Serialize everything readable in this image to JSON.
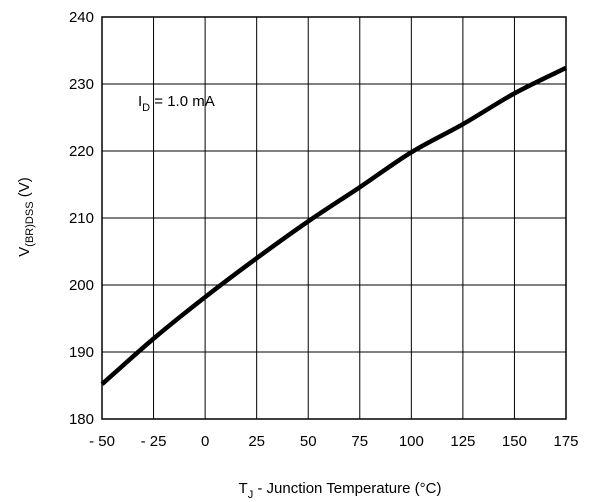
{
  "chart_data": {
    "type": "line",
    "xlabel": {
      "symbol": "T",
      "sub": "J",
      "text": " -  Junction Temperature (°C)"
    },
    "ylabel": {
      "prefix": "V",
      "sub": "(BR)DSS",
      "suffix": " (V)"
    },
    "annotation": {
      "prefix": "I",
      "sub": "D",
      "suffix": " = 1.0 mA"
    },
    "xlim": [
      -50,
      175
    ],
    "ylim": [
      180,
      240
    ],
    "x_ticks": [
      -50,
      -25,
      0,
      25,
      50,
      75,
      100,
      125,
      150,
      175
    ],
    "x_tick_labels": [
      "- 50",
      "- 25",
      "0",
      "25",
      "50",
      "75",
      "100",
      "125",
      "150",
      "175"
    ],
    "y_ticks": [
      180,
      190,
      200,
      210,
      220,
      230,
      240
    ],
    "y_tick_labels": [
      "180",
      "190",
      "200",
      "210",
      "220",
      "230",
      "240"
    ],
    "grid": true,
    "series": [
      {
        "color": "#000000",
        "x": [
          -50,
          -25,
          0,
          25,
          50,
          75,
          100,
          125,
          150,
          175
        ],
        "y": [
          185.2,
          192.0,
          198.2,
          204.0,
          209.5,
          214.6,
          219.8,
          224.0,
          228.6,
          232.4
        ]
      }
    ]
  }
}
